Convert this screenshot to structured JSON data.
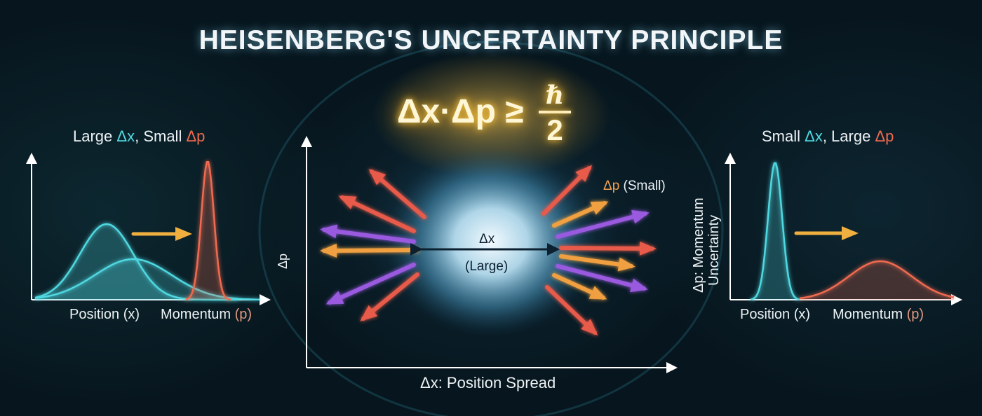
{
  "title": "HEISENBERG'S UNCERTAINTY PRINCIPLE",
  "equation": {
    "lhs": "Δx·Δp ≥",
    "numerator": "ℏ",
    "denominator": "2"
  },
  "left_panel": {
    "heading": {
      "a": "Large ",
      "b": "Δx",
      "c": ", Small ",
      "d": "Δp"
    },
    "x_label_position": "Position (x)",
    "x_label_momentum": {
      "a": "Momentum ",
      "b": "(p)"
    }
  },
  "center_panel": {
    "y_label": "Δp",
    "x_label": "Δx: Position Spread",
    "spread_label": "Δx",
    "spread_sub": "(Large)",
    "arrow_label": {
      "a": "Δp",
      "b": " (Small)"
    }
  },
  "right_panel": {
    "heading": {
      "a": "Small ",
      "b": "Δx",
      "c": ", Large ",
      "d": "Δp"
    },
    "y_label_line1": "Δp: Momentum",
    "y_label_line2": "Uncertainty",
    "x_label_position": "Position (x)",
    "x_label_momentum": {
      "a": "Momentum ",
      "b": "(p)"
    }
  },
  "colors": {
    "position": "#4fd8e0",
    "momentum": "#f06a50",
    "arrow_gold": "#f0b040",
    "arrow_purple": "#9a5ae0",
    "arrow_orange": "#f0a040",
    "arrow_red": "#e85a48"
  }
}
